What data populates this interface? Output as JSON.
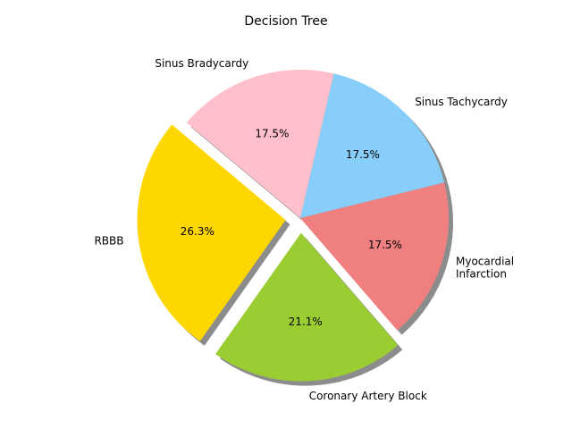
{
  "chart_data": {
    "type": "pie",
    "title": "Decision Tree",
    "shadow": true,
    "start_angle_deg": 140,
    "slices": [
      {
        "label": "RBBB",
        "value": 26.3,
        "pct_label": "26.3%",
        "color": "#ffd700",
        "explode": true
      },
      {
        "label": "Coronary Artery Block",
        "value": 21.1,
        "pct_label": "21.1%",
        "color": "#9acd32",
        "explode": true
      },
      {
        "label": "Myocardial Infarction",
        "label_lines": [
          "Myocardial",
          "Infarction"
        ],
        "value": 17.5,
        "pct_label": "17.5%",
        "color": "#f08080",
        "explode": false
      },
      {
        "label": "Sinus Tachycardy",
        "value": 17.5,
        "pct_label": "17.5%",
        "color": "#87cefa",
        "explode": false
      },
      {
        "label": "Sinus Bradycardy",
        "value": 17.5,
        "pct_label": "17.5%",
        "color": "#ffc0cb",
        "explode": false
      }
    ]
  }
}
